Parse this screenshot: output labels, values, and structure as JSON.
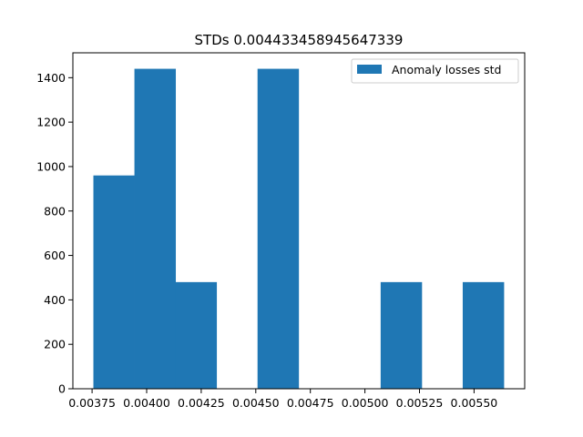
{
  "chart_data": {
    "type": "bar",
    "title": "STDs 0.004433458945647339",
    "xlabel": "",
    "ylabel": "",
    "xlim": [
      0.003662,
      0.005732
    ],
    "ylim": [
      0,
      1512
    ],
    "xticks": [
      {
        "value": 0.00375,
        "label": "0.00375"
      },
      {
        "value": 0.004,
        "label": "0.00400"
      },
      {
        "value": 0.00425,
        "label": "0.00425"
      },
      {
        "value": 0.0045,
        "label": "0.00450"
      },
      {
        "value": 0.00475,
        "label": "0.00475"
      },
      {
        "value": 0.005,
        "label": "0.00500"
      },
      {
        "value": 0.00525,
        "label": "0.00525"
      },
      {
        "value": 0.0055,
        "label": "0.00550"
      }
    ],
    "yticks": [
      {
        "value": 0,
        "label": "0"
      },
      {
        "value": 200,
        "label": "200"
      },
      {
        "value": 400,
        "label": "400"
      },
      {
        "value": 600,
        "label": "600"
      },
      {
        "value": 800,
        "label": "800"
      },
      {
        "value": 1000,
        "label": "1000"
      },
      {
        "value": 1200,
        "label": "1200"
      },
      {
        "value": 1400,
        "label": "1400"
      }
    ],
    "bins": [
      {
        "x0": 0.003756,
        "x1": 0.003944,
        "value": 960
      },
      {
        "x0": 0.003944,
        "x1": 0.004132,
        "value": 1440
      },
      {
        "x0": 0.004132,
        "x1": 0.00432,
        "value": 480
      },
      {
        "x0": 0.00432,
        "x1": 0.004508,
        "value": 0
      },
      {
        "x0": 0.004508,
        "x1": 0.004696,
        "value": 1440
      },
      {
        "x0": 0.004696,
        "x1": 0.004884,
        "value": 0
      },
      {
        "x0": 0.004884,
        "x1": 0.005072,
        "value": 0
      },
      {
        "x0": 0.005072,
        "x1": 0.00526,
        "value": 480
      },
      {
        "x0": 0.00526,
        "x1": 0.005448,
        "value": 0
      },
      {
        "x0": 0.005448,
        "x1": 0.005636,
        "value": 480
      }
    ],
    "series": [
      {
        "name": "Anomaly losses std",
        "color": "#1f77b4"
      }
    ],
    "legend": "top-right",
    "grid": false
  }
}
